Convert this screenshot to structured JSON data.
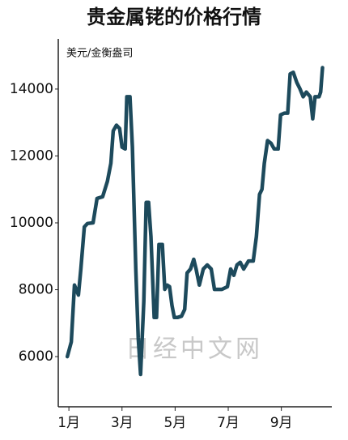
{
  "chart_data": {
    "type": "line",
    "title": "贵金属铑的价格行情",
    "y_unit": "美元/金衡盎司",
    "watermark": "日经中文网",
    "xlim": [
      0.6,
      10.9
    ],
    "xticks": [
      {
        "value": 1,
        "label": "1月"
      },
      {
        "value": 3,
        "label": "3月"
      },
      {
        "value": 5,
        "label": "5月"
      },
      {
        "value": 7,
        "label": "7月"
      },
      {
        "value": 9,
        "label": "9月"
      }
    ],
    "ylim": [
      4500,
      15500
    ],
    "yticks": [
      6000,
      8000,
      10000,
      12000,
      14000
    ],
    "grid": false,
    "series": [
      {
        "color": "#1d4a5c",
        "x": [
          0.94,
          1.09,
          1.21,
          1.36,
          1.45,
          1.58,
          1.7,
          1.91,
          2.06,
          2.27,
          2.45,
          2.58,
          2.67,
          2.79,
          2.91,
          3.0,
          3.12,
          3.18,
          3.3,
          3.39,
          3.52,
          3.61,
          3.7,
          3.82,
          3.91,
          4.0,
          4.09,
          4.21,
          4.3,
          4.39,
          4.52,
          4.61,
          4.7,
          4.79,
          4.88,
          4.97,
          5.09,
          5.24,
          5.36,
          5.45,
          5.58,
          5.7,
          5.79,
          5.91,
          6.06,
          6.21,
          6.36,
          6.48,
          6.76,
          6.97,
          7.09,
          7.21,
          7.33,
          7.45,
          7.58,
          7.76,
          7.94,
          8.06,
          8.18,
          8.27,
          8.36,
          8.48,
          8.61,
          8.73,
          8.88,
          8.97,
          9.12,
          9.24,
          9.33,
          9.45,
          9.58,
          9.7,
          9.82,
          9.94,
          10.09,
          10.18,
          10.27,
          10.42,
          10.48,
          10.55
        ],
        "values": [
          6000,
          6440,
          8140,
          7840,
          8620,
          9880,
          9980,
          10000,
          10730,
          10780,
          11240,
          11780,
          12750,
          12920,
          12820,
          12260,
          12210,
          13770,
          13770,
          12260,
          8620,
          6560,
          5470,
          7650,
          10610,
          10610,
          9590,
          7170,
          7170,
          9350,
          9350,
          8010,
          8140,
          8090,
          7530,
          7170,
          7170,
          7210,
          7410,
          8500,
          8620,
          8910,
          8620,
          8140,
          8620,
          8740,
          8620,
          8010,
          8010,
          8090,
          8620,
          8430,
          8740,
          8820,
          8620,
          8860,
          8860,
          9590,
          10850,
          11000,
          11780,
          12460,
          12380,
          12210,
          12210,
          13230,
          13280,
          13280,
          14450,
          14500,
          14200,
          14010,
          13770,
          13910,
          13770,
          13110,
          13770,
          13770,
          13910,
          14640
        ]
      }
    ]
  }
}
